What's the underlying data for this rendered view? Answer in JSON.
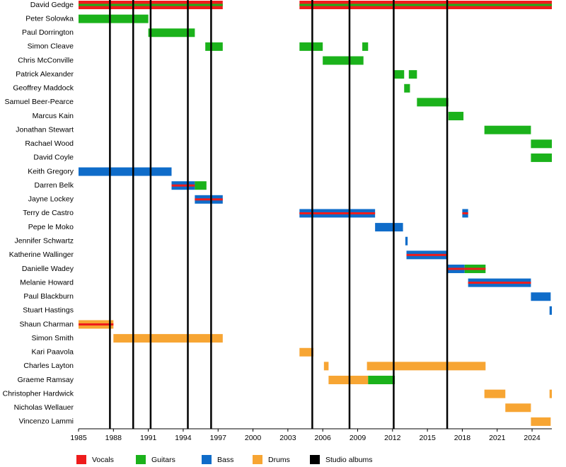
{
  "chart_data": {
    "type": "timeline",
    "xlim": [
      1985,
      2025.7
    ],
    "xticks": [
      1985,
      1988,
      1991,
      1994,
      1997,
      2000,
      2003,
      2006,
      2009,
      2012,
      2015,
      2018,
      2021,
      2024
    ],
    "legend": [
      {
        "name": "Vocals",
        "color": "#ee1c1c"
      },
      {
        "name": "Guitars",
        "color": "#1bb21b"
      },
      {
        "name": "Bass",
        "color": "#0f6cc9"
      },
      {
        "name": "Drums",
        "color": "#f7a533"
      },
      {
        "name": "Studio albums",
        "color": "#000000"
      }
    ],
    "albums": [
      1987.7,
      1989.7,
      1991.2,
      1994.4,
      1996.4,
      2005.1,
      2008.3,
      2012.1,
      2016.7
    ],
    "rows": [
      {
        "name": "David Gedge",
        "periods": [
          {
            "roles": [
              "Vocals",
              "Guitars"
            ],
            "start": 1985,
            "end": 1997.4
          },
          {
            "roles": [
              "Vocals",
              "Guitars"
            ],
            "start": 2004.0,
            "end": 2025.7
          }
        ]
      },
      {
        "name": "Peter Solowka",
        "periods": [
          {
            "roles": [
              "Guitars"
            ],
            "start": 1985,
            "end": 1991.0
          }
        ]
      },
      {
        "name": "Paul Dorrington",
        "periods": [
          {
            "roles": [
              "Guitars"
            ],
            "start": 1991.0,
            "end": 1995.0
          }
        ]
      },
      {
        "name": "Simon Cleave",
        "periods": [
          {
            "roles": [
              "Guitars"
            ],
            "start": 1995.9,
            "end": 1997.4
          },
          {
            "roles": [
              "Guitars"
            ],
            "start": 2004.0,
            "end": 2006.0
          },
          {
            "roles": [
              "Guitars"
            ],
            "start": 2009.4,
            "end": 2009.9
          }
        ]
      },
      {
        "name": "Chris McConville",
        "periods": [
          {
            "roles": [
              "Guitars"
            ],
            "start": 2006.0,
            "end": 2009.5
          }
        ]
      },
      {
        "name": "Patrick Alexander",
        "periods": [
          {
            "roles": [
              "Guitars"
            ],
            "start": 2012.1,
            "end": 2013.0
          },
          {
            "roles": [
              "Guitars"
            ],
            "start": 2013.4,
            "end": 2014.1
          }
        ]
      },
      {
        "name": "Geoffrey Maddock",
        "periods": [
          {
            "roles": [
              "Guitars"
            ],
            "start": 2013.0,
            "end": 2013.5
          }
        ]
      },
      {
        "name": "Samuel Beer-Pearce",
        "periods": [
          {
            "roles": [
              "Guitars"
            ],
            "start": 2014.1,
            "end": 2016.8
          }
        ]
      },
      {
        "name": "Marcus Kain",
        "periods": [
          {
            "roles": [
              "Guitars"
            ],
            "start": 2016.8,
            "end": 2018.1
          }
        ]
      },
      {
        "name": "Jonathan Stewart",
        "periods": [
          {
            "roles": [
              "Guitars"
            ],
            "start": 2019.9,
            "end": 2023.9
          }
        ]
      },
      {
        "name": "Rachael Wood",
        "periods": [
          {
            "roles": [
              "Guitars"
            ],
            "start": 2023.9,
            "end": 2025.7
          }
        ]
      },
      {
        "name": "David Coyle",
        "periods": [
          {
            "roles": [
              "Guitars"
            ],
            "start": 2023.9,
            "end": 2025.7
          }
        ]
      },
      {
        "name": "Keith Gregory",
        "periods": [
          {
            "roles": [
              "Bass"
            ],
            "start": 1985,
            "end": 1993.0
          }
        ]
      },
      {
        "name": "Darren Belk",
        "periods": [
          {
            "roles": [
              "Bass",
              "Vocals"
            ],
            "start": 1993.0,
            "end": 1995.0
          },
          {
            "roles": [
              "Guitars"
            ],
            "start": 1995.0,
            "end": 1996.0
          }
        ]
      },
      {
        "name": "Jayne Lockey",
        "periods": [
          {
            "roles": [
              "Bass",
              "Vocals"
            ],
            "start": 1995.0,
            "end": 1997.4
          }
        ]
      },
      {
        "name": "Terry de Castro",
        "periods": [
          {
            "roles": [
              "Bass",
              "Vocals"
            ],
            "start": 2004.0,
            "end": 2010.5
          },
          {
            "roles": [
              "Bass",
              "Vocals"
            ],
            "start": 2018.0,
            "end": 2018.5
          }
        ]
      },
      {
        "name": "Pepe le Moko",
        "periods": [
          {
            "roles": [
              "Bass"
            ],
            "start": 2010.5,
            "end": 2012.9
          }
        ]
      },
      {
        "name": "Jennifer Schwartz",
        "periods": [
          {
            "roles": [
              "Bass"
            ],
            "start": 2013.1,
            "end": 2013.3
          }
        ]
      },
      {
        "name": "Katherine Wallinger",
        "periods": [
          {
            "roles": [
              "Bass",
              "Vocals"
            ],
            "start": 2013.2,
            "end": 2016.7
          }
        ]
      },
      {
        "name": "Danielle Wadey",
        "periods": [
          {
            "roles": [
              "Bass",
              "Vocals"
            ],
            "start": 2016.7,
            "end": 2018.2
          },
          {
            "roles": [
              "Guitars",
              "Vocals"
            ],
            "start": 2018.2,
            "end": 2020.0
          }
        ]
      },
      {
        "name": "Melanie Howard",
        "periods": [
          {
            "roles": [
              "Bass",
              "Vocals"
            ],
            "start": 2018.5,
            "end": 2023.9
          }
        ]
      },
      {
        "name": "Paul Blackburn",
        "periods": [
          {
            "roles": [
              "Bass"
            ],
            "start": 2023.9,
            "end": 2025.6
          }
        ]
      },
      {
        "name": "Stuart Hastings",
        "periods": [
          {
            "roles": [
              "Bass"
            ],
            "start": 2025.5,
            "end": 2025.7
          }
        ]
      },
      {
        "name": "Shaun Charman",
        "periods": [
          {
            "roles": [
              "Drums",
              "Vocals"
            ],
            "start": 1985,
            "end": 1988.0
          }
        ]
      },
      {
        "name": "Simon Smith",
        "periods": [
          {
            "roles": [
              "Drums"
            ],
            "start": 1988.0,
            "end": 1997.4
          }
        ]
      },
      {
        "name": "Kari Paavola",
        "periods": [
          {
            "roles": [
              "Drums"
            ],
            "start": 2004.0,
            "end": 2005.2
          }
        ]
      },
      {
        "name": "Charles Layton",
        "periods": [
          {
            "roles": [
              "Drums"
            ],
            "start": 2006.1,
            "end": 2006.5
          },
          {
            "roles": [
              "Drums"
            ],
            "start": 2009.8,
            "end": 2020.0
          }
        ]
      },
      {
        "name": "Graeme Ramsay",
        "periods": [
          {
            "roles": [
              "Drums"
            ],
            "start": 2006.5,
            "end": 2009.9
          },
          {
            "roles": [
              "Guitars"
            ],
            "start": 2009.9,
            "end": 2012.2
          }
        ]
      },
      {
        "name": "Christopher Hardwick",
        "periods": [
          {
            "roles": [
              "Drums"
            ],
            "start": 2019.9,
            "end": 2021.7
          },
          {
            "roles": [
              "Drums"
            ],
            "start": 2025.5,
            "end": 2025.7
          }
        ]
      },
      {
        "name": "Nicholas Wellauer",
        "periods": [
          {
            "roles": [
              "Drums"
            ],
            "start": 2021.7,
            "end": 2023.9
          }
        ]
      },
      {
        "name": "Vincenzo Lammi",
        "periods": [
          {
            "roles": [
              "Drums"
            ],
            "start": 2023.9,
            "end": 2025.6
          }
        ]
      }
    ]
  }
}
